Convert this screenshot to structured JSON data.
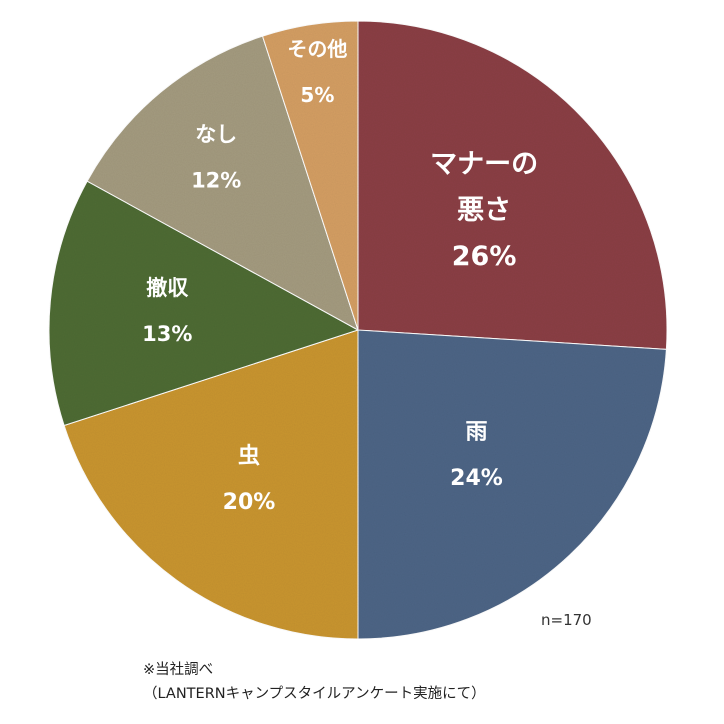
{
  "chart_data": {
    "type": "pie",
    "start_angle_deg": 0,
    "direction": "clockwise",
    "slices": [
      {
        "label": "マナーの悪さ",
        "value": 26,
        "percent_label": "26%",
        "color": "#8B3F45"
      },
      {
        "label": "雨",
        "value": 24,
        "percent_label": "24%",
        "color": "#4D6586"
      },
      {
        "label": "虫",
        "value": 20,
        "percent_label": "20%",
        "color": "#C9952F"
      },
      {
        "label": "撤収",
        "value": 13,
        "percent_label": "13%",
        "color": "#4E6B34"
      },
      {
        "label": "なし",
        "value": 12,
        "percent_label": "12%",
        "color": "#A49B7F"
      },
      {
        "label": "その他",
        "value": 5,
        "percent_label": "5%",
        "color": "#D49E63"
      }
    ]
  },
  "sample_size": "n=170",
  "source_note": {
    "line1": "※当社調べ",
    "line2": "（LANTERNキャンプスタイルアンケート実施にて）"
  }
}
